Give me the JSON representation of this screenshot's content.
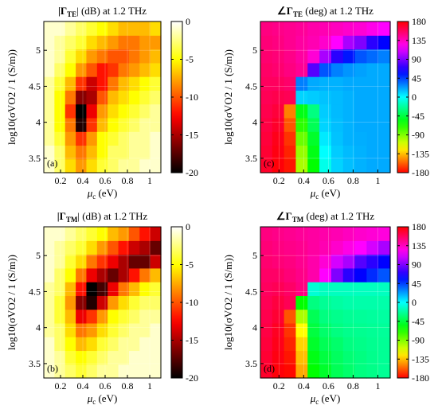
{
  "chart_data": [
    {
      "type": "heatmap",
      "panel": "(a)",
      "title_main": "|Γ",
      "title_sub": "TE",
      "title_tail": "| (dB) at 1.2 THz",
      "x_tick_labels": [
        "0.2",
        "0.4",
        "0.6",
        "0.8",
        "1"
      ],
      "y_tick_labels": [
        "3.5",
        "4",
        "4.5",
        "5"
      ],
      "xlabel_main": "μ",
      "xlabel_sub": "c",
      "xlabel_tail": " (eV)",
      "ylabel_text": "log10(σVO2 / 1 (S/m))",
      "x_values": [
        0.1,
        0.2,
        0.3,
        0.4,
        0.5,
        0.6,
        0.7,
        0.8,
        0.9,
        1.0,
        1.1
      ],
      "y_values": [
        3.4,
        3.6,
        3.8,
        4.0,
        4.2,
        4.4,
        4.6,
        4.8,
        5.0,
        5.2,
        5.4
      ],
      "xlim": [
        0.05,
        1.1
      ],
      "ylim": [
        3.3,
        5.4
      ],
      "colorbar": "hot",
      "clim": [
        -20,
        0
      ],
      "colorbar_ticks": [
        "0",
        "-5",
        "-10",
        "-15",
        "-20"
      ],
      "values": [
        [
          -1,
          -3,
          -6,
          -8,
          -6,
          -4,
          -3,
          -2,
          -2,
          -1,
          -1
        ],
        [
          -1,
          -3,
          -7,
          -9,
          -7,
          -5,
          -3,
          -3,
          -2,
          -2,
          -1
        ],
        [
          -2,
          -4,
          -8,
          -11,
          -8,
          -5,
          -4,
          -3,
          -2,
          -2,
          -1
        ],
        [
          -2,
          -5,
          -9,
          -19,
          -11,
          -7,
          -5,
          -4,
          -3,
          -2,
          -2
        ],
        [
          -2,
          -5,
          -11,
          -20,
          -13,
          -8,
          -6,
          -5,
          -4,
          -3,
          -2
        ],
        [
          -2,
          -5,
          -9,
          -16,
          -15,
          -10,
          -7,
          -6,
          -5,
          -4,
          -3
        ],
        [
          -2,
          -4,
          -7,
          -11,
          -14,
          -12,
          -9,
          -7,
          -6,
          -5,
          -4
        ],
        [
          -1,
          -3,
          -5,
          -8,
          -10,
          -12,
          -11,
          -9,
          -8,
          -7,
          -6
        ],
        [
          -1,
          -2,
          -4,
          -6,
          -8,
          -9,
          -10,
          -10,
          -9,
          -8,
          -7
        ],
        [
          -1,
          -2,
          -3,
          -4,
          -6,
          -7,
          -8,
          -9,
          -9,
          -8,
          -8
        ],
        [
          -1,
          -1,
          -2,
          -3,
          -4,
          -5,
          -6,
          -7,
          -7,
          -7,
          -6
        ]
      ]
    },
    {
      "type": "heatmap",
      "panel": "(c)",
      "title_main": "∠Γ",
      "title_sub": "TE",
      "title_tail": " (deg) at 1.2 THz",
      "x_tick_labels": [
        "0.2",
        "0.4",
        "0.6",
        "0.8",
        "1"
      ],
      "y_tick_labels": [
        "3.5",
        "4",
        "4.5",
        "5"
      ],
      "xlabel_main": "μ",
      "xlabel_sub": "c",
      "xlabel_tail": " (eV)",
      "ylabel_text": "log10(σVO2 / 1 (S/m))",
      "x_values": [
        0.1,
        0.2,
        0.3,
        0.4,
        0.5,
        0.6,
        0.7,
        0.8,
        0.9,
        1.0,
        1.1
      ],
      "y_values": [
        3.4,
        3.6,
        3.8,
        4.0,
        4.2,
        4.4,
        4.6,
        4.8,
        5.0,
        5.2,
        5.4
      ],
      "xlim": [
        0.05,
        1.1
      ],
      "ylim": [
        3.3,
        5.4
      ],
      "colorbar": "hsv",
      "clim": [
        -180,
        180
      ],
      "colorbar_ticks": [
        "180",
        "135",
        "90",
        "45",
        "0",
        "-45",
        "-90",
        "-135",
        "-180"
      ],
      "values": [
        [
          170,
          178,
          -175,
          -100,
          -60,
          -5,
          10,
          15,
          18,
          20,
          20
        ],
        [
          168,
          176,
          -172,
          -95,
          -55,
          0,
          12,
          16,
          18,
          20,
          20
        ],
        [
          166,
          174,
          -168,
          -85,
          -50,
          5,
          14,
          18,
          19,
          20,
          20
        ],
        [
          164,
          170,
          -160,
          -70,
          -40,
          10,
          15,
          18,
          20,
          20,
          20
        ],
        [
          162,
          166,
          -150,
          -55,
          -30,
          12,
          16,
          18,
          20,
          20,
          20
        ],
        [
          160,
          162,
          160,
          10,
          12,
          14,
          16,
          18,
          20,
          20,
          20
        ],
        [
          158,
          158,
          155,
          30,
          20,
          18,
          18,
          20,
          20,
          20,
          20
        ],
        [
          156,
          154,
          150,
          145,
          80,
          40,
          30,
          25,
          22,
          20,
          20
        ],
        [
          154,
          152,
          148,
          142,
          130,
          100,
          70,
          55,
          40,
          35,
          30
        ],
        [
          152,
          150,
          146,
          142,
          138,
          132,
          120,
          100,
          90,
          70,
          60
        ],
        [
          150,
          148,
          146,
          144,
          140,
          138,
          135,
          132,
          130,
          125,
          120
        ]
      ]
    },
    {
      "type": "heatmap",
      "panel": "(b)",
      "title_main": "|Γ",
      "title_sub": "TM",
      "title_tail": "| (dB) at 1.2 THz",
      "x_tick_labels": [
        "0.2",
        "0.4",
        "0.6",
        "0.8",
        "1"
      ],
      "y_tick_labels": [
        "3.5",
        "4",
        "4.5",
        "5"
      ],
      "xlabel_main": "μ",
      "xlabel_sub": "c",
      "xlabel_tail": " (eV)",
      "ylabel_text": "log10(σVO2 / 1 (S/m))",
      "x_values": [
        0.1,
        0.2,
        0.3,
        0.4,
        0.5,
        0.6,
        0.7,
        0.8,
        0.9,
        1.0,
        1.1
      ],
      "y_values": [
        3.4,
        3.6,
        3.8,
        4.0,
        4.2,
        4.4,
        4.6,
        4.8,
        5.0,
        5.2,
        5.4
      ],
      "xlim": [
        0.05,
        1.1
      ],
      "ylim": [
        3.3,
        5.4
      ],
      "colorbar": "hot",
      "clim": [
        -20,
        0
      ],
      "colorbar_ticks": [
        "0",
        "-5",
        "-10",
        "-15",
        "-20"
      ],
      "values": [
        [
          -1,
          -2,
          -3,
          -4,
          -3,
          -2,
          -2,
          -1,
          -1,
          -1,
          -1
        ],
        [
          -1,
          -2,
          -4,
          -5,
          -4,
          -3,
          -2,
          -2,
          -1,
          -1,
          -1
        ],
        [
          -1,
          -3,
          -5,
          -7,
          -6,
          -4,
          -3,
          -2,
          -2,
          -1,
          -1
        ],
        [
          -2,
          -3,
          -6,
          -9,
          -8,
          -6,
          -4,
          -3,
          -2,
          -2,
          -1
        ],
        [
          -2,
          -4,
          -7,
          -13,
          -11,
          -8,
          -5,
          -4,
          -3,
          -2,
          -2
        ],
        [
          -2,
          -4,
          -8,
          -16,
          -19,
          -14,
          -8,
          -6,
          -4,
          -3,
          -3
        ],
        [
          -2,
          -3,
          -7,
          -12,
          -20,
          -18,
          -13,
          -9,
          -7,
          -5,
          -4
        ],
        [
          -1,
          -3,
          -5,
          -9,
          -13,
          -15,
          -17,
          -15,
          -12,
          -9,
          -7
        ],
        [
          -1,
          -2,
          -4,
          -6,
          -9,
          -11,
          -13,
          -15,
          -17,
          -17,
          -14
        ],
        [
          -1,
          -2,
          -3,
          -4,
          -6,
          -8,
          -10,
          -12,
          -14,
          -15,
          -17
        ],
        [
          -1,
          -1,
          -2,
          -3,
          -4,
          -5,
          -7,
          -8,
          -10,
          -12,
          -14
        ]
      ]
    },
    {
      "type": "heatmap",
      "panel": "(d)",
      "title_main": "∠Γ",
      "title_sub": "TM",
      "title_tail": " (deg) at 1.2 THz",
      "x_tick_labels": [
        "0.2",
        "0.4",
        "0.6",
        "0.8",
        "1"
      ],
      "y_tick_labels": [
        "3.5",
        "4",
        "4.5",
        "5"
      ],
      "xlabel_main": "μ",
      "xlabel_sub": "c",
      "xlabel_tail": " (eV)",
      "ylabel_text": "log10(σVO2 / 1 (S/m))",
      "x_values": [
        0.1,
        0.2,
        0.3,
        0.4,
        0.5,
        0.6,
        0.7,
        0.8,
        0.9,
        1.0,
        1.1
      ],
      "y_values": [
        3.4,
        3.6,
        3.8,
        4.0,
        4.2,
        4.4,
        4.6,
        4.8,
        5.0,
        5.2,
        5.4
      ],
      "xlim": [
        0.05,
        1.1
      ],
      "ylim": [
        3.3,
        5.4
      ],
      "colorbar": "hsv",
      "clim": [
        -180,
        180
      ],
      "colorbar_ticks": [
        "180",
        "135",
        "90",
        "45",
        "0",
        "-45",
        "-90",
        "-135",
        "-180"
      ],
      "values": [
        [
          170,
          178,
          -178,
          -140,
          -60,
          -50,
          -40,
          -35,
          -30,
          -28,
          -25
        ],
        [
          168,
          176,
          -175,
          -135,
          -55,
          -45,
          -38,
          -33,
          -30,
          -27,
          -25
        ],
        [
          166,
          174,
          -172,
          -130,
          -50,
          -40,
          -35,
          -30,
          -28,
          -26,
          -25
        ],
        [
          164,
          172,
          -168,
          -120,
          -45,
          -35,
          -30,
          -27,
          -26,
          -25,
          -24
        ],
        [
          162,
          168,
          -160,
          -100,
          -40,
          -30,
          -27,
          -25,
          -24,
          -23,
          -22
        ],
        [
          160,
          165,
          160,
          -60,
          -30,
          -25,
          -22,
          -20,
          -20,
          -20,
          -20
        ],
        [
          158,
          160,
          156,
          150,
          -10,
          -15,
          -15,
          -15,
          -15,
          -15,
          -15
        ],
        [
          156,
          156,
          152,
          148,
          140,
          120,
          90,
          70,
          60,
          50,
          40
        ],
        [
          154,
          152,
          150,
          146,
          140,
          130,
          110,
          100,
          80,
          70,
          60
        ],
        [
          152,
          150,
          148,
          146,
          142,
          138,
          132,
          126,
          120,
          110,
          100
        ],
        [
          150,
          148,
          146,
          144,
          142,
          140,
          138,
          135,
          132,
          130,
          128
        ]
      ]
    }
  ]
}
